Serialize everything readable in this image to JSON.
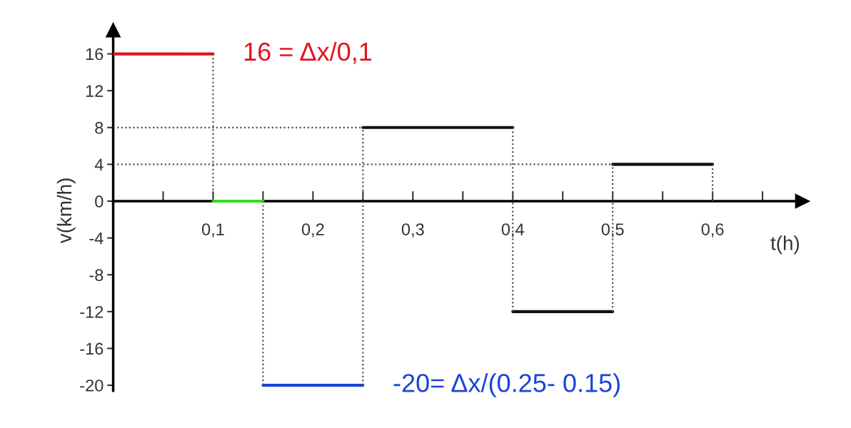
{
  "chart_data": {
    "type": "line",
    "xlabel": "t(h)",
    "ylabel": "v(km/h)",
    "xlim": [
      0,
      0.69
    ],
    "ylim": [
      -20.6,
      18.6
    ],
    "xticks": [
      {
        "value": 0.05,
        "label": null
      },
      {
        "value": 0.1,
        "label": "0,1"
      },
      {
        "value": 0.15,
        "label": null
      },
      {
        "value": 0.2,
        "label": "0,2"
      },
      {
        "value": 0.25,
        "label": null
      },
      {
        "value": 0.3,
        "label": "0,3"
      },
      {
        "value": 0.35,
        "label": null
      },
      {
        "value": 0.4,
        "label": "0,4"
      },
      {
        "value": 0.45,
        "label": null
      },
      {
        "value": 0.5,
        "label": "0,5"
      },
      {
        "value": 0.55,
        "label": null
      },
      {
        "value": 0.6,
        "label": "0,6"
      },
      {
        "value": 0.65,
        "label": null
      }
    ],
    "yticks": [
      16,
      12,
      8,
      4,
      0,
      {
        "value": -4,
        "label": "-4"
      },
      {
        "value": -8,
        "label": "-8"
      },
      {
        "value": -12,
        "label": "-12"
      },
      {
        "value": -16,
        "label": "-16"
      },
      {
        "value": -20,
        "label": "-20"
      }
    ],
    "grid": false,
    "marker": "none",
    "series": [
      {
        "color": "#e0141e",
        "x": [
          0,
          0.1
        ],
        "values": [
          16,
          16
        ]
      },
      {
        "color": "#33dd22",
        "x": [
          0.1,
          0.15
        ],
        "values": [
          0,
          0
        ]
      },
      {
        "color": "#1a44d8",
        "x": [
          0.15,
          0.25
        ],
        "values": [
          -20,
          -20
        ]
      },
      {
        "color": "#111111",
        "x": [
          0.25,
          0.4
        ],
        "values": [
          8,
          8
        ]
      },
      {
        "color": "#111111",
        "x": [
          0.4,
          0.5
        ],
        "values": [
          -12,
          -12
        ]
      },
      {
        "color": "#111111",
        "x": [
          0.5,
          0.6
        ],
        "values": [
          4,
          4
        ]
      },
      {
        "color": "#555555",
        "line_style": "dotted",
        "x": [
          0.1,
          0.1,
          null,
          0.15,
          0.15,
          null,
          0.25,
          0.25,
          null,
          0.4,
          0.4,
          null,
          0.5,
          0.5,
          null,
          0.6,
          0.6
        ],
        "values": [
          16,
          0,
          null,
          0,
          -20,
          null,
          -20,
          8,
          null,
          8,
          -12,
          null,
          -12,
          4,
          null,
          4,
          0
        ]
      },
      {
        "color": "#555555",
        "line_style": "dotted",
        "x": [
          0,
          0.25
        ],
        "values": [
          8,
          8
        ]
      },
      {
        "color": "#555555",
        "line_style": "dotted",
        "x": [
          0,
          0.5
        ],
        "values": [
          4,
          4
        ]
      }
    ],
    "annotations": [
      {
        "text": "16 = Δx/0,1",
        "x": 0.1,
        "y": 16
      },
      {
        "text": "-20= Δx/(0.25- 0.15)",
        "x": 0.25,
        "y": -20
      }
    ]
  }
}
